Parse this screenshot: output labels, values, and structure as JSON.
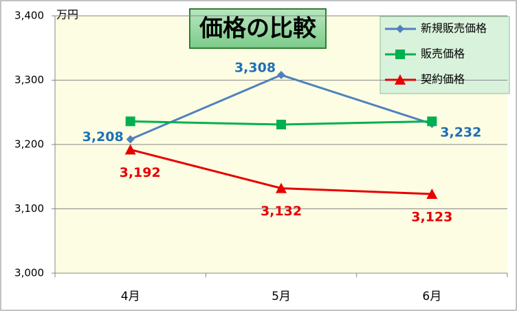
{
  "chart_data": {
    "type": "line",
    "title": "価格の比較",
    "y_unit": "万円",
    "categories": [
      "4月",
      "5月",
      "6月"
    ],
    "series": [
      {
        "name": "新規販売価格",
        "color": "#4f81bd",
        "marker": "diamond",
        "values": [
          3208,
          3308,
          3232
        ],
        "value_labels": [
          "3,208",
          "3,308",
          "3,232"
        ],
        "label_color": "#1f6fb5"
      },
      {
        "name": "販売価格",
        "color": "#00b050",
        "marker": "square",
        "values": [
          3236,
          3231,
          3236
        ]
      },
      {
        "name": "契約価格",
        "color": "#e60000",
        "marker": "triangle",
        "values": [
          3192,
          3132,
          3123
        ],
        "value_labels": [
          "3,192",
          "3,132",
          "3,123"
        ],
        "label_color": "#e60000"
      }
    ],
    "ylim": [
      3000,
      3400
    ],
    "yticks": [
      {
        "value": 3000,
        "label": "3,000"
      },
      {
        "value": 3100,
        "label": "3,100"
      },
      {
        "value": 3200,
        "label": "3,200"
      },
      {
        "value": 3300,
        "label": "3,300"
      },
      {
        "value": 3400,
        "label": "3,400"
      }
    ],
    "grid": true,
    "legend": "top-right"
  }
}
